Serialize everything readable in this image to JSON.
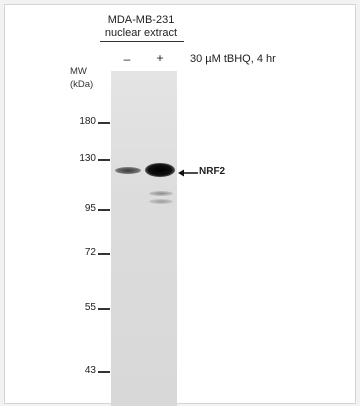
{
  "sample": {
    "line1": "MDA-MB-231",
    "line2": "nuclear extract"
  },
  "lanes": [
    {
      "label": "–"
    },
    {
      "label": "+"
    }
  ],
  "treatment": "30 µM tBHQ, 4 hr",
  "mw_axis": {
    "line1": "MW",
    "line2": "(kDa)",
    "markers": [
      "180",
      "130",
      "95",
      "72",
      "55",
      "43"
    ]
  },
  "target": {
    "label": "NRF2",
    "arrow_icon": "left-arrow-icon"
  },
  "colors": {
    "membrane": "#dcdcdc",
    "band": "#111111",
    "text": "#222222"
  }
}
